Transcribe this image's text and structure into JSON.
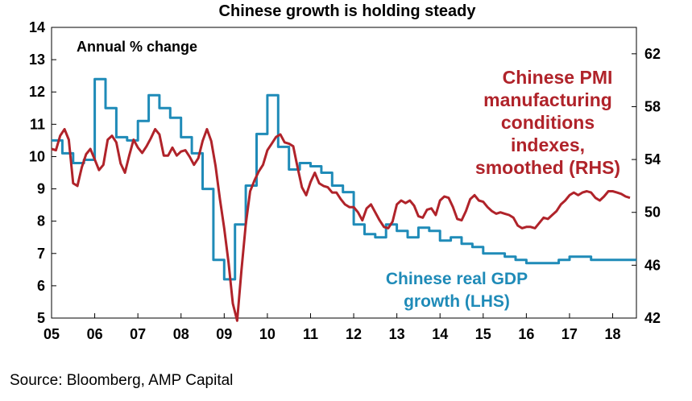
{
  "chart_data": {
    "type": "line",
    "title": "Chinese growth is holding steady",
    "annotation": "Annual % change",
    "x_tick_labels": [
      "05",
      "06",
      "07",
      "08",
      "09",
      "10",
      "11",
      "12",
      "13",
      "14",
      "15",
      "16",
      "17",
      "18"
    ],
    "x_range": [
      2005.0,
      2018.55
    ],
    "left_axis": {
      "ylim": [
        5,
        14
      ],
      "ticks": [
        5,
        6,
        7,
        8,
        9,
        10,
        11,
        12,
        13,
        14
      ]
    },
    "right_axis": {
      "ylim": [
        42,
        64
      ],
      "ticks": [
        42,
        46,
        50,
        54,
        58,
        62
      ]
    },
    "grid": false,
    "colors": {
      "gdp": "#1f8bb8",
      "pmi": "#b0232a"
    },
    "series": [
      {
        "key": "gdp",
        "name_lines": [
          "Chinese real GDP",
          "growth (LHS)"
        ],
        "axis": "left",
        "step": true,
        "x": [
          2005.0,
          2005.25,
          2005.5,
          2005.75,
          2006.0,
          2006.25,
          2006.5,
          2006.75,
          2007.0,
          2007.25,
          2007.5,
          2007.75,
          2008.0,
          2008.25,
          2008.5,
          2008.75,
          2009.0,
          2009.25,
          2009.5,
          2009.75,
          2010.0,
          2010.25,
          2010.5,
          2010.75,
          2011.0,
          2011.25,
          2011.5,
          2011.75,
          2012.0,
          2012.25,
          2012.5,
          2012.75,
          2013.0,
          2013.25,
          2013.5,
          2013.75,
          2014.0,
          2014.25,
          2014.5,
          2014.75,
          2015.0,
          2015.25,
          2015.5,
          2015.75,
          2016.0,
          2016.25,
          2016.5,
          2016.75,
          2017.0,
          2017.25,
          2017.5,
          2017.75,
          2018.0,
          2018.25
        ],
        "values": [
          10.5,
          10.1,
          9.8,
          9.9,
          12.4,
          11.5,
          10.6,
          10.5,
          11.1,
          11.9,
          11.5,
          11.2,
          10.6,
          10.1,
          9.0,
          6.8,
          6.2,
          7.9,
          9.1,
          10.7,
          11.9,
          10.3,
          9.6,
          9.8,
          9.7,
          9.5,
          9.1,
          8.9,
          7.9,
          7.6,
          7.5,
          7.9,
          7.7,
          7.5,
          7.8,
          7.7,
          7.4,
          7.5,
          7.3,
          7.2,
          7.0,
          7.0,
          6.9,
          6.8,
          6.7,
          6.7,
          6.7,
          6.8,
          6.9,
          6.9,
          6.8,
          6.8,
          6.8,
          6.8
        ]
      },
      {
        "key": "pmi",
        "name_lines": [
          "Chinese  PMI",
          "manufacturing",
          "conditions",
          "indexes,",
          "smoothed  (RHS)"
        ],
        "axis": "right",
        "step": false,
        "x": [
          2005.0,
          2005.1,
          2005.2,
          2005.3,
          2005.4,
          2005.5,
          2005.6,
          2005.7,
          2005.8,
          2005.9,
          2006.0,
          2006.1,
          2006.2,
          2006.3,
          2006.4,
          2006.5,
          2006.6,
          2006.7,
          2006.8,
          2006.9,
          2007.0,
          2007.1,
          2007.2,
          2007.3,
          2007.4,
          2007.5,
          2007.6,
          2007.7,
          2007.8,
          2007.9,
          2008.0,
          2008.1,
          2008.2,
          2008.3,
          2008.4,
          2008.5,
          2008.6,
          2008.7,
          2008.8,
          2008.9,
          2009.0,
          2009.1,
          2009.2,
          2009.3,
          2009.4,
          2009.5,
          2009.6,
          2009.7,
          2009.8,
          2009.9,
          2010.0,
          2010.1,
          2010.2,
          2010.3,
          2010.4,
          2010.5,
          2010.6,
          2010.7,
          2010.8,
          2010.9,
          2011.0,
          2011.1,
          2011.2,
          2011.3,
          2011.4,
          2011.5,
          2011.6,
          2011.7,
          2011.8,
          2011.9,
          2012.0,
          2012.1,
          2012.2,
          2012.3,
          2012.4,
          2012.5,
          2012.6,
          2012.7,
          2012.8,
          2012.9,
          2013.0,
          2013.1,
          2013.2,
          2013.3,
          2013.4,
          2013.5,
          2013.6,
          2013.7,
          2013.8,
          2013.9,
          2014.0,
          2014.1,
          2014.2,
          2014.3,
          2014.4,
          2014.5,
          2014.6,
          2014.7,
          2014.8,
          2014.9,
          2015.0,
          2015.1,
          2015.2,
          2015.3,
          2015.4,
          2015.5,
          2015.6,
          2015.7,
          2015.8,
          2015.9,
          2016.0,
          2016.1,
          2016.2,
          2016.3,
          2016.4,
          2016.5,
          2016.6,
          2016.7,
          2016.8,
          2016.9,
          2017.0,
          2017.1,
          2017.2,
          2017.3,
          2017.4,
          2017.5,
          2017.6,
          2017.7,
          2017.8,
          2017.9,
          2018.0,
          2018.1,
          2018.2,
          2018.3,
          2018.4
        ],
        "values": [
          54.8,
          54.7,
          55.8,
          56.3,
          55.5,
          52.2,
          52.0,
          53.4,
          54.4,
          54.8,
          54.0,
          53.2,
          53.6,
          55.5,
          55.8,
          55.3,
          53.7,
          53.0,
          54.3,
          55.5,
          54.9,
          54.5,
          55.0,
          55.6,
          56.3,
          55.9,
          54.3,
          54.3,
          54.9,
          54.3,
          54.6,
          54.7,
          54.2,
          53.6,
          54.1,
          55.4,
          56.3,
          55.4,
          53.5,
          51.0,
          48.8,
          46.2,
          43.1,
          41.8,
          45.6,
          49.1,
          51.6,
          52.4,
          53.1,
          53.6,
          54.7,
          55.2,
          55.7,
          55.9,
          55.3,
          55.2,
          55.0,
          53.4,
          51.9,
          51.3,
          52.3,
          53.0,
          52.2,
          52.0,
          51.9,
          51.5,
          51.5,
          51.0,
          50.6,
          50.4,
          50.4,
          50.0,
          49.4,
          50.3,
          50.6,
          50.0,
          49.4,
          48.9,
          48.8,
          49.3,
          50.6,
          50.9,
          50.7,
          50.9,
          50.5,
          49.7,
          49.6,
          50.2,
          50.3,
          49.8,
          50.9,
          51.2,
          51.1,
          50.4,
          49.5,
          49.4,
          50.1,
          51.0,
          51.3,
          50.9,
          50.8,
          50.4,
          50.1,
          49.9,
          50.0,
          49.9,
          49.8,
          49.6,
          49.0,
          48.8,
          48.9,
          48.9,
          48.8,
          49.2,
          49.6,
          49.5,
          49.8,
          50.1,
          50.6,
          50.9,
          51.3,
          51.5,
          51.3,
          51.5,
          51.6,
          51.5,
          51.1,
          50.9,
          51.2,
          51.6,
          51.6,
          51.5,
          51.4,
          51.2,
          51.1
        ]
      }
    ]
  },
  "source": "Source: Bloomberg, AMP Capital"
}
